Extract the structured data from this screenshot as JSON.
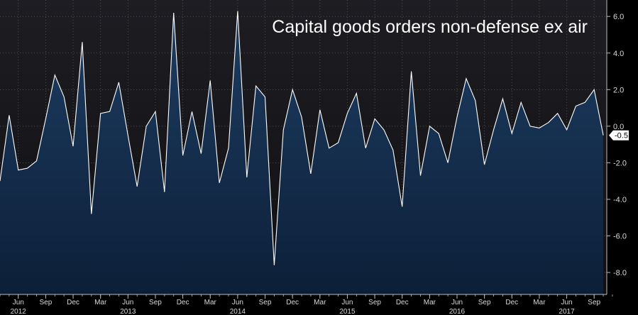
{
  "chart_data": {
    "type": "area",
    "title": "Capital goods orders non-defense ex air",
    "xlabel": "",
    "ylabel": "",
    "ylim": [
      -9.2,
      6.9
    ],
    "yticks": [
      6,
      4,
      2,
      0,
      -2,
      -4,
      -6,
      -8
    ],
    "ytick_labels": [
      "6.0",
      "4.0",
      "2.0",
      "0.0",
      "-2.0",
      "-4.0",
      "-6.0",
      "-8.0"
    ],
    "month_labels": [
      "Jun",
      "Sep",
      "Dec",
      "Mar",
      "Jun",
      "Sep",
      "Dec",
      "Mar",
      "Jun",
      "Sep",
      "Dec",
      "Mar",
      "Jun",
      "Sep",
      "Dec",
      "Mar",
      "Jun",
      "Sep",
      "Dec",
      "Mar",
      "Jun",
      "Sep"
    ],
    "year_labels": [
      "2012",
      "2013",
      "2014",
      "2015",
      "2016",
      "2017"
    ],
    "x_start": "2012-04",
    "x_end": "2017-10",
    "last_value_label": "-0.5",
    "values": [
      -3.0,
      0.6,
      -2.4,
      -2.3,
      -1.9,
      0.4,
      2.8,
      1.6,
      -1.1,
      4.6,
      -4.8,
      0.7,
      0.8,
      2.4,
      -0.5,
      -3.3,
      0.0,
      0.8,
      -3.6,
      6.2,
      -1.6,
      0.8,
      -1.5,
      2.5,
      -3.1,
      -1.2,
      6.3,
      -2.8,
      2.2,
      1.6,
      -7.6,
      -0.2,
      2.0,
      0.5,
      -2.6,
      0.9,
      -1.2,
      -0.9,
      0.7,
      1.8,
      -1.2,
      0.4,
      -0.2,
      -1.3,
      -4.4,
      3.0,
      -2.7,
      0.0,
      -0.4,
      -2.0,
      0.5,
      2.6,
      1.4,
      -2.1,
      -0.2,
      1.5,
      -0.4,
      1.3,
      0.0,
      -0.1,
      0.2,
      0.7,
      -0.2,
      1.1,
      1.3,
      2.0,
      -0.5
    ],
    "colors": {
      "background": "#000000",
      "plot_top": "#1d1d22",
      "fill_top": "#1e3d62",
      "fill_bottom": "#0c1f38",
      "line": "#ffffff",
      "grid": "#5a5a5a",
      "axis": "#bdbdbd",
      "label_box": "#ffffff"
    },
    "grid": true,
    "axis_position": "right"
  }
}
